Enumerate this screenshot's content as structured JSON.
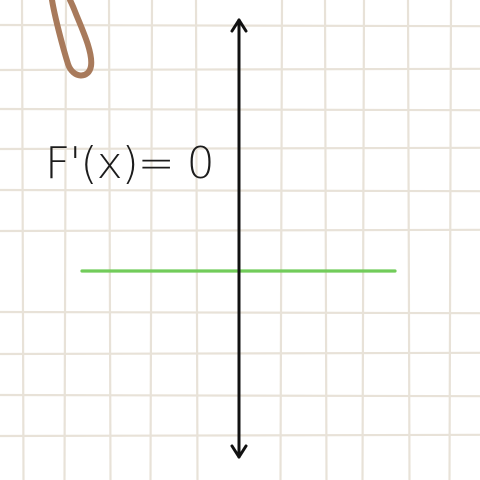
{
  "equation": "F'(x)= 0",
  "colors": {
    "background": "#ffffff",
    "grid_line": "#e8e2d8",
    "axis": "#111111",
    "graph_line": "#72cc5a",
    "paperclip": "#a87a5b",
    "text": "#1c1c1c"
  },
  "icons": {
    "decoration": "paperclip-icon"
  }
}
